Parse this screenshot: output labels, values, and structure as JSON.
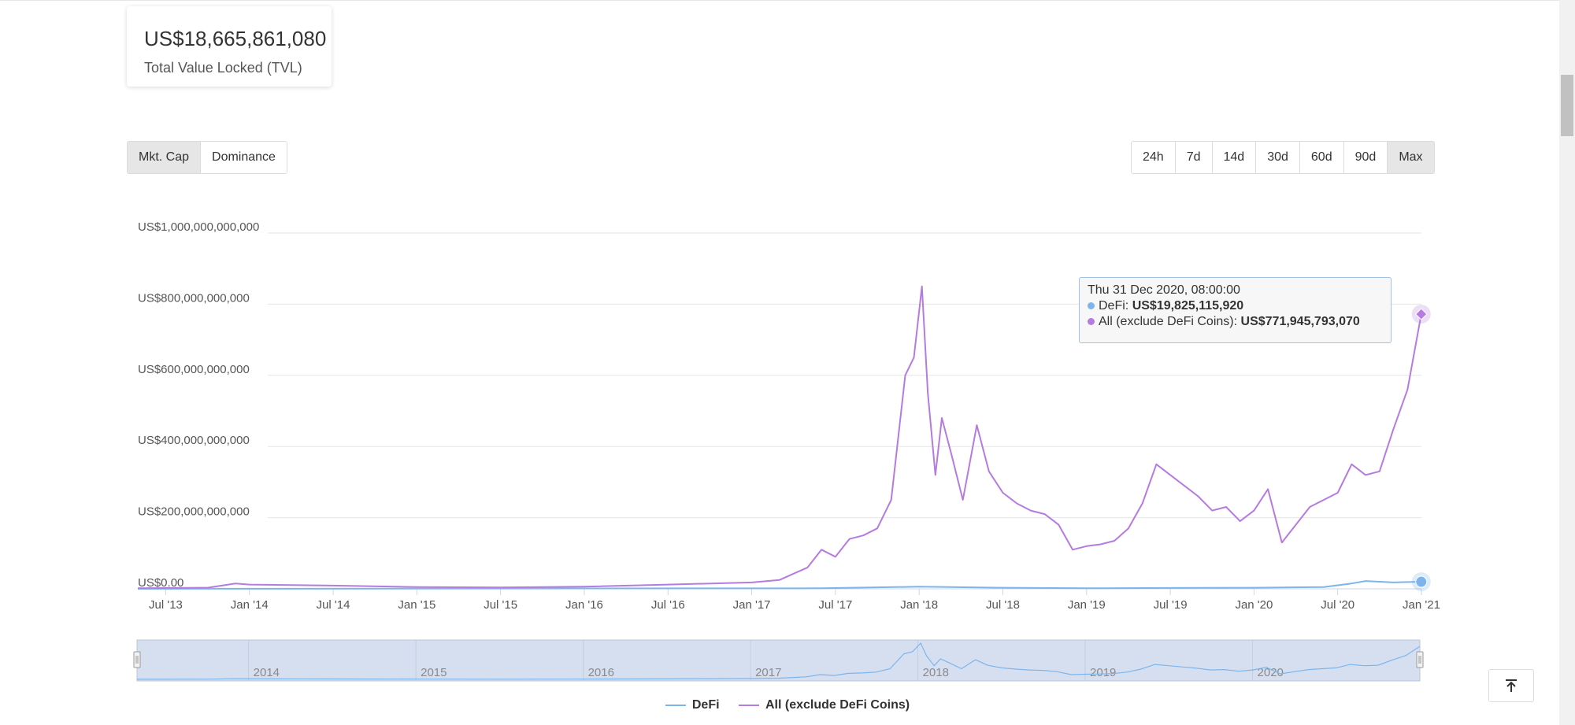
{
  "tvl": {
    "value": "US$18,665,861,080",
    "label": "Total Value Locked (TVL)"
  },
  "modes": [
    {
      "label": "Mkt. Cap",
      "active": true
    },
    {
      "label": "Dominance",
      "active": false
    }
  ],
  "ranges": [
    {
      "label": "24h",
      "active": false
    },
    {
      "label": "7d",
      "active": false
    },
    {
      "label": "14d",
      "active": false
    },
    {
      "label": "30d",
      "active": false
    },
    {
      "label": "60d",
      "active": false
    },
    {
      "label": "90d",
      "active": false
    },
    {
      "label": "Max",
      "active": true
    }
  ],
  "tooltip": {
    "date": "Thu 31 Dec 2020, 08:00:00",
    "rows": [
      {
        "name": "DeFi:",
        "value": "US$19,825,115,920",
        "color": "#7cb5ec"
      },
      {
        "name": "All (exclude DeFi Coins):",
        "value": "US$771,945,793,070",
        "color": "#b57bde"
      }
    ]
  },
  "scroll_top_icon": "arrow-up-to-bar-icon",
  "colors": {
    "defi": "#7cb5ec",
    "all": "#b57bde",
    "navigator_bg": "#d6dff0"
  },
  "chart_data": {
    "type": "line",
    "title": "",
    "xlabel": "",
    "ylabel": "",
    "x_range": [
      "2013-05",
      "2021-01"
    ],
    "ylim": [
      0,
      1000000000000
    ],
    "y_ticks": [
      {
        "value": 0,
        "label": "US$0.00"
      },
      {
        "value": 200000000000,
        "label": "US$200,000,000,000"
      },
      {
        "value": 400000000000,
        "label": "US$400,000,000,000"
      },
      {
        "value": 600000000000,
        "label": "US$600,000,000,000"
      },
      {
        "value": 800000000000,
        "label": "US$800,000,000,000"
      },
      {
        "value": 1000000000000,
        "label": "US$1,000,000,000,000"
      }
    ],
    "x_ticks": [
      {
        "date": "2013-07",
        "label": "Jul '13"
      },
      {
        "date": "2014-01",
        "label": "Jan '14"
      },
      {
        "date": "2014-07",
        "label": "Jul '14"
      },
      {
        "date": "2015-01",
        "label": "Jan '15"
      },
      {
        "date": "2015-07",
        "label": "Jul '15"
      },
      {
        "date": "2016-01",
        "label": "Jan '16"
      },
      {
        "date": "2016-07",
        "label": "Jul '16"
      },
      {
        "date": "2017-01",
        "label": "Jan '17"
      },
      {
        "date": "2017-07",
        "label": "Jul '17"
      },
      {
        "date": "2018-01",
        "label": "Jan '18"
      },
      {
        "date": "2018-07",
        "label": "Jul '18"
      },
      {
        "date": "2019-01",
        "label": "Jan '19"
      },
      {
        "date": "2019-07",
        "label": "Jul '19"
      },
      {
        "date": "2020-01",
        "label": "Jan '20"
      },
      {
        "date": "2020-07",
        "label": "Jul '20"
      },
      {
        "date": "2021-01",
        "label": "Jan '21"
      }
    ],
    "navigator_years": [
      {
        "date": "2014-01",
        "label": "2014"
      },
      {
        "date": "2015-01",
        "label": "2015"
      },
      {
        "date": "2016-01",
        "label": "2016"
      },
      {
        "date": "2017-01",
        "label": "2017"
      },
      {
        "date": "2018-01",
        "label": "2018"
      },
      {
        "date": "2019-01",
        "label": "2019"
      },
      {
        "date": "2020-01",
        "label": "2020"
      }
    ],
    "series": [
      {
        "name": "DeFi",
        "color": "#7cb5ec",
        "points": [
          [
            "2013-05",
            0
          ],
          [
            "2016-01",
            1000000000
          ],
          [
            "2017-06",
            1500000000
          ],
          [
            "2018-01",
            6000000000
          ],
          [
            "2018-07",
            3000000000
          ],
          [
            "2019-01",
            1500000000
          ],
          [
            "2019-07",
            2500000000
          ],
          [
            "2020-01",
            3000000000
          ],
          [
            "2020-06",
            5000000000
          ],
          [
            "2020-08",
            15000000000
          ],
          [
            "2020-09",
            22000000000
          ],
          [
            "2020-10",
            20000000000
          ],
          [
            "2020-11",
            18000000000
          ],
          [
            "2020-12-31",
            19825115920
          ]
        ]
      },
      {
        "name": "All (exclude DeFi Coins)",
        "color": "#b57bde",
        "points": [
          [
            "2013-05",
            1500000000
          ],
          [
            "2013-10",
            3000000000
          ],
          [
            "2013-12",
            15000000000
          ],
          [
            "2014-01",
            12000000000
          ],
          [
            "2014-07",
            9000000000
          ],
          [
            "2015-01",
            5000000000
          ],
          [
            "2015-07",
            4000000000
          ],
          [
            "2016-01",
            6000000000
          ],
          [
            "2016-07",
            12000000000
          ],
          [
            "2017-01",
            18000000000
          ],
          [
            "2017-03",
            25000000000
          ],
          [
            "2017-05",
            60000000000
          ],
          [
            "2017-06",
            110000000000
          ],
          [
            "2017-07",
            90000000000
          ],
          [
            "2017-08",
            140000000000
          ],
          [
            "2017-09",
            150000000000
          ],
          [
            "2017-10",
            170000000000
          ],
          [
            "2017-11",
            250000000000
          ],
          [
            "2017-12",
            600000000000
          ],
          [
            "2017-12-20",
            650000000000
          ],
          [
            "2018-01-07",
            850000000000
          ],
          [
            "2018-01-20",
            550000000000
          ],
          [
            "2018-02-06",
            320000000000
          ],
          [
            "2018-02-20",
            480000000000
          ],
          [
            "2018-03-10",
            380000000000
          ],
          [
            "2018-04-05",
            250000000000
          ],
          [
            "2018-05-05",
            460000000000
          ],
          [
            "2018-06",
            330000000000
          ],
          [
            "2018-07",
            270000000000
          ],
          [
            "2018-08",
            240000000000
          ],
          [
            "2018-09",
            220000000000
          ],
          [
            "2018-10",
            210000000000
          ],
          [
            "2018-11",
            180000000000
          ],
          [
            "2018-12",
            110000000000
          ],
          [
            "2019-01",
            120000000000
          ],
          [
            "2019-02",
            125000000000
          ],
          [
            "2019-03",
            135000000000
          ],
          [
            "2019-04",
            170000000000
          ],
          [
            "2019-05",
            240000000000
          ],
          [
            "2019-06",
            350000000000
          ],
          [
            "2019-07",
            320000000000
          ],
          [
            "2019-08",
            290000000000
          ],
          [
            "2019-09",
            260000000000
          ],
          [
            "2019-10",
            220000000000
          ],
          [
            "2019-11",
            230000000000
          ],
          [
            "2019-12",
            190000000000
          ],
          [
            "2020-01",
            220000000000
          ],
          [
            "2020-02",
            280000000000
          ],
          [
            "2020-03",
            130000000000
          ],
          [
            "2020-04",
            180000000000
          ],
          [
            "2020-05",
            230000000000
          ],
          [
            "2020-06",
            250000000000
          ],
          [
            "2020-07",
            270000000000
          ],
          [
            "2020-08",
            350000000000
          ],
          [
            "2020-09",
            320000000000
          ],
          [
            "2020-10",
            330000000000
          ],
          [
            "2020-11",
            450000000000
          ],
          [
            "2020-12",
            560000000000
          ],
          [
            "2020-12-31",
            771945793070
          ]
        ]
      }
    ],
    "legend_position": "bottom-center",
    "grid": true,
    "navigator": true
  }
}
